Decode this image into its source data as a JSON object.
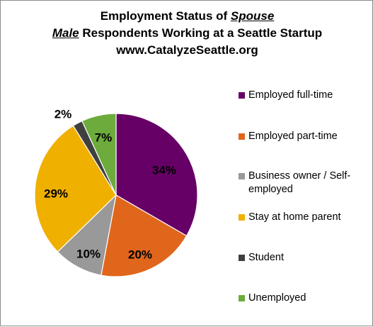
{
  "chart_data": {
    "type": "pie",
    "title": {
      "line1_prefix": "Employment Status of ",
      "line1_emph": "Spouse",
      "line2_emph": "Male",
      "line2_rest": " Respondents Working at a Seattle Startup",
      "line3": "www.CatalyzeSeattle.org"
    },
    "slices": [
      {
        "label": "Employed full-time",
        "value": 34,
        "display": "34%",
        "color": "#660066"
      },
      {
        "label": "Employed part-time",
        "value": 20,
        "display": "20%",
        "color": "#e0661c"
      },
      {
        "label": "Business owner / Self-employed",
        "label_lines": [
          "Business owner / Self-",
          "employed"
        ],
        "value": 10,
        "display": "10%",
        "color": "#999999"
      },
      {
        "label": "Stay at home parent",
        "value": 29,
        "display": "29%",
        "color": "#f0b000"
      },
      {
        "label": "Student",
        "value": 2,
        "display": "2%",
        "color": "#3f3f3f"
      },
      {
        "label": "Unemployed",
        "value": 7,
        "display": "7%",
        "color": "#6cab3c"
      }
    ],
    "legend_position": "right",
    "start_angle": "12 o'clock",
    "direction": "clockwise"
  }
}
